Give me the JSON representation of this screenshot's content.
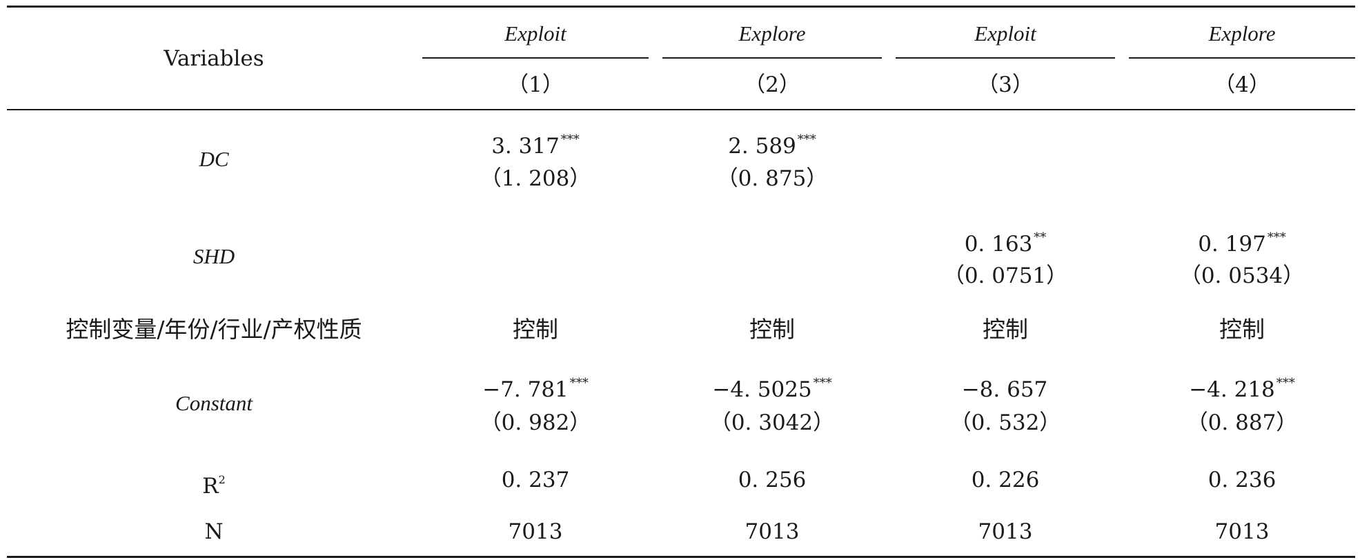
{
  "header": {
    "variables_label": "Variables",
    "groups": [
      "Exploit",
      "Explore",
      "Exploit",
      "Explore"
    ],
    "numbers": [
      "（1）",
      "（2）",
      "（3）",
      "（4）"
    ]
  },
  "rows": {
    "dc": {
      "label": "DC",
      "coef": [
        "3. 317",
        "2. 589",
        "",
        ""
      ],
      "stars": [
        "***",
        "***",
        "",
        ""
      ],
      "se": [
        "（1. 208）",
        "（0. 875）",
        "",
        ""
      ]
    },
    "shd": {
      "label": "SHD",
      "coef": [
        "",
        "",
        "0. 163",
        "0. 197"
      ],
      "stars": [
        "",
        "",
        "**",
        "***"
      ],
      "se": [
        "",
        "",
        "（0. 0751）",
        "（0. 0534）"
      ]
    },
    "controls": {
      "label": "控制变量/年份/行业/产权性质",
      "values": [
        "控制",
        "控制",
        "控制",
        "控制"
      ]
    },
    "constant": {
      "label": "Constant",
      "coef": [
        "−7. 781",
        "−4. 5025",
        "−8. 657",
        "−4. 218"
      ],
      "stars": [
        "***",
        "***",
        "",
        "***"
      ],
      "se": [
        "（0. 982）",
        "（0. 3042）",
        "（0. 532）",
        "（0. 887）"
      ]
    },
    "r2": {
      "label": "R",
      "label_sup": "2",
      "values": [
        "0. 237",
        "0. 256",
        "0. 226",
        "0. 236"
      ]
    },
    "n": {
      "label": "N",
      "values": [
        "7013",
        "7013",
        "7013",
        "7013"
      ]
    }
  }
}
